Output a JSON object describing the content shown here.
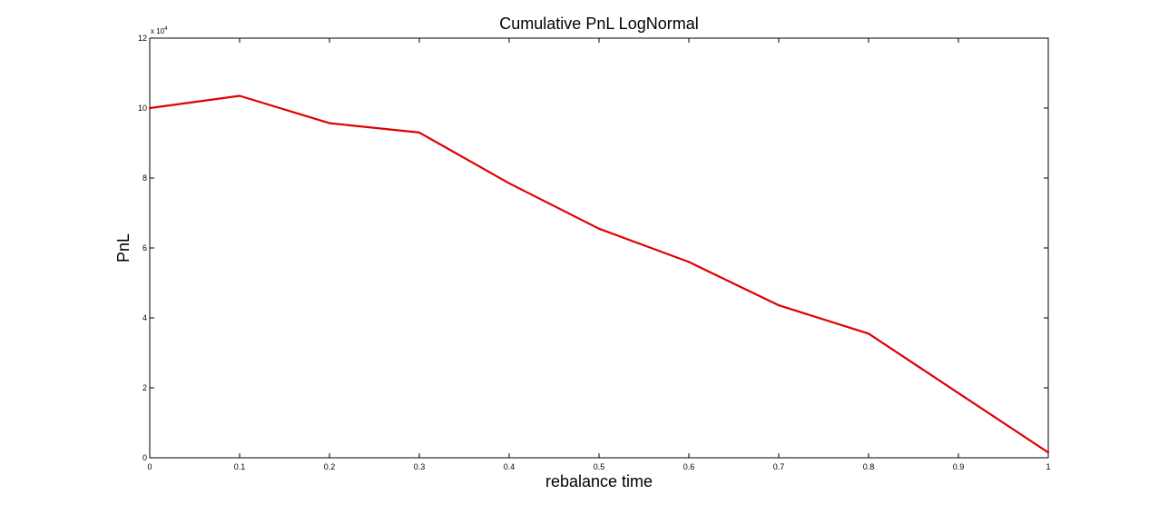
{
  "chart_data": {
    "type": "line",
    "title": "Cumulative PnL LogNormal",
    "xlabel": "rebalance time",
    "ylabel": "PnL",
    "xlim": [
      0,
      1
    ],
    "ylim": [
      0,
      120000
    ],
    "x_ticks": [
      0,
      0.1,
      0.2,
      0.3,
      0.4,
      0.5,
      0.6,
      0.7,
      0.8,
      0.9,
      1
    ],
    "x_tick_labels": [
      "0",
      "0.1",
      "0.2",
      "0.3",
      "0.4",
      "0.5",
      "0.6",
      "0.7",
      "0.8",
      "0.9",
      "1"
    ],
    "y_ticks": [
      0,
      20000,
      40000,
      60000,
      80000,
      100000,
      120000
    ],
    "y_tick_labels": [
      "0",
      "2",
      "4",
      "6",
      "8",
      "10",
      "12"
    ],
    "y_exponent_base": "x 10",
    "y_exponent_power": "4",
    "grid": false,
    "legend": "none",
    "series": [
      {
        "color": "#e00000",
        "x": [
          0,
          0.1,
          0.2,
          0.3,
          0.4,
          0.5,
          0.6,
          0.7,
          0.8,
          0.9,
          1
        ],
        "y": [
          100000,
          103500,
          95700,
          93000,
          78500,
          65500,
          56000,
          43600,
          35500,
          18500,
          1500
        ]
      }
    ]
  }
}
